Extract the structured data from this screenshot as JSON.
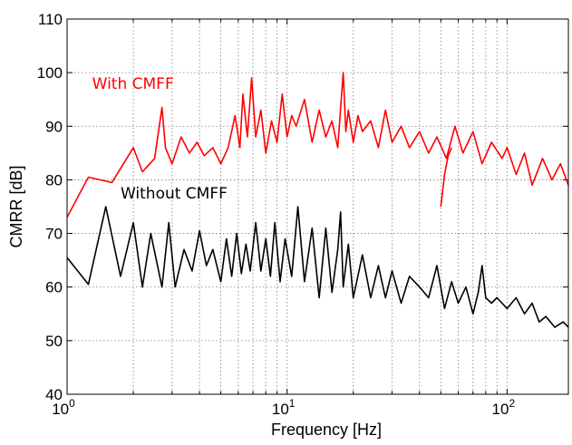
{
  "chart_data": {
    "type": "line",
    "title": "",
    "xlabel": "Frequency [Hz]",
    "ylabel": "CMRR [dB]",
    "xscale": "log",
    "xlim": [
      1,
      190
    ],
    "ylim": [
      40,
      110
    ],
    "grid": true,
    "xticks": [
      {
        "value": 1,
        "base": "10",
        "exp": "0"
      },
      {
        "value": 10,
        "base": "10",
        "exp": "1"
      },
      {
        "value": 100,
        "base": "10",
        "exp": "2"
      }
    ],
    "yticks": [
      "40",
      "50",
      "60",
      "70",
      "80",
      "90",
      "100",
      "110"
    ],
    "series": [
      {
        "name": "With CMFF",
        "color": "#ff0000",
        "x": [
          1.0,
          1.25,
          1.6,
          2.0,
          2.2,
          2.5,
          2.7,
          2.8,
          3.0,
          3.3,
          3.6,
          3.9,
          4.2,
          4.6,
          5.0,
          5.4,
          5.8,
          6.1,
          6.3,
          6.6,
          6.9,
          7.2,
          7.6,
          8.0,
          8.5,
          9.0,
          9.5,
          10.0,
          10.5,
          11.0,
          12.0,
          13.0,
          14.0,
          15.0,
          16.0,
          17.0,
          18.0,
          18.5,
          19.0,
          20.0,
          21.0,
          22.0,
          24.0,
          26.0,
          28.0,
          30.0,
          33.0,
          36.0,
          40.0,
          44.0,
          48.0,
          53.0,
          58.0,
          63.0,
          70.0,
          77.0,
          85.0,
          95.0,
          100.0,
          110.0,
          120.0,
          130.0,
          145.0,
          160.0,
          175.0,
          190.0
        ],
        "y": [
          73,
          80.5,
          79.5,
          86,
          81.5,
          84,
          93.5,
          86,
          83,
          88,
          85,
          87,
          84.5,
          86,
          83,
          86,
          92,
          86,
          96,
          88,
          99,
          88,
          93,
          85,
          91,
          87,
          96,
          88,
          92,
          90,
          95,
          87,
          93,
          88,
          91,
          86,
          100,
          89,
          93,
          87,
          92,
          89,
          91,
          86,
          93,
          87,
          90,
          86,
          89,
          85,
          88,
          84,
          90,
          85,
          89,
          83,
          87,
          84,
          86,
          81,
          85,
          79,
          84,
          80,
          83,
          79
        ]
      },
      {
        "name": "",
        "color": "#ff0000",
        "x": [
          50.0,
          52.0,
          54.0,
          56.0
        ],
        "y": [
          75,
          81,
          84.5,
          86
        ]
      },
      {
        "name": "Without CMFF",
        "color": "#000000",
        "x": [
          1.0,
          1.25,
          1.5,
          1.75,
          2.0,
          2.2,
          2.4,
          2.7,
          2.9,
          3.1,
          3.4,
          3.7,
          4.0,
          4.3,
          4.6,
          5.0,
          5.3,
          5.6,
          5.9,
          6.2,
          6.5,
          6.8,
          7.2,
          7.6,
          8.0,
          8.4,
          8.8,
          9.3,
          9.8,
          10.5,
          11.2,
          12.0,
          13.0,
          14.0,
          15.0,
          16.0,
          17.0,
          17.5,
          18.0,
          19.0,
          20.0,
          22.0,
          24.0,
          26.0,
          28.0,
          30.0,
          33.0,
          36.0,
          40.0,
          44.0,
          48.0,
          52.0,
          56.0,
          60.0,
          65.0,
          70.0,
          74.0,
          77.0,
          80.0,
          85.0,
          90.0,
          100.0,
          110.0,
          120.0,
          130.0,
          140.0,
          150.0,
          165.0,
          180.0,
          190.0
        ],
        "y": [
          65.5,
          60.5,
          75,
          62,
          72,
          60,
          70,
          60,
          72,
          60,
          67,
          63,
          70.5,
          64,
          67,
          61,
          69,
          62,
          70,
          62.5,
          68,
          63,
          72,
          63,
          69,
          62,
          72,
          61,
          69,
          62,
          75,
          61,
          71,
          58,
          71,
          59,
          67,
          74,
          60,
          68,
          58,
          66,
          58,
          64,
          58,
          63,
          57,
          62,
          60,
          58,
          64,
          56,
          61,
          57,
          60,
          55,
          59,
          64,
          58,
          57,
          58,
          56,
          58,
          55,
          57,
          53.5,
          54.5,
          52.5,
          53.5,
          52.5
        ]
      }
    ],
    "annotations": [
      {
        "text": "With CMFF",
        "color": "#ff0000",
        "x": 1.3,
        "y": 97
      },
      {
        "text": "Without CMFF",
        "color": "#000000",
        "x": 1.75,
        "y": 76.5
      }
    ]
  }
}
